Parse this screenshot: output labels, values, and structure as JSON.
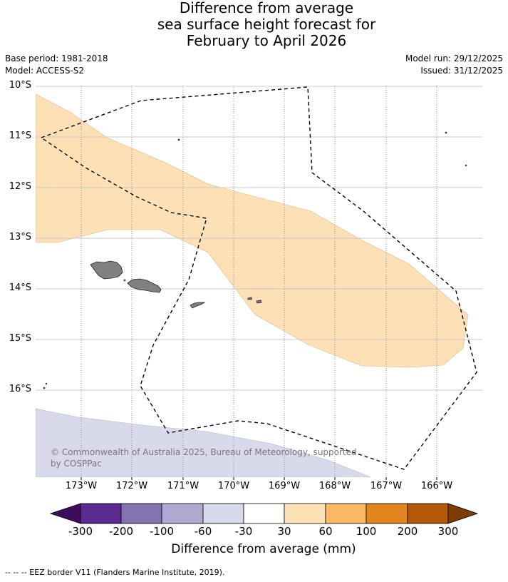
{
  "title": {
    "line1": "Difference from average",
    "line2": "sea surface height forecast for",
    "line3": "February to April 2026"
  },
  "meta": {
    "base_period": "Base period: 1981-2018",
    "model": "Model: ACCESS-S2",
    "model_run": "Model run: 29/12/2025",
    "issued": "Issued: 31/12/2025"
  },
  "map": {
    "lat_labels": [
      "10°S",
      "11°S",
      "12°S",
      "13°S",
      "14°S",
      "15°S",
      "16°S"
    ],
    "lon_labels": [
      "173°W",
      "172°W",
      "171°W",
      "170°W",
      "169°W",
      "168°W",
      "167°W",
      "166°W"
    ],
    "copyright_line1": "© Commonwealth of Australia 2025, Bureau of Meteorology, supported",
    "copyright_line2": "by COSPPac",
    "regions": [
      {
        "name": "positive-anomaly-band",
        "category": "30 to 60 mm",
        "color": "#fde0b6"
      },
      {
        "name": "negative-anomaly-south",
        "category": "-60 to -30 mm",
        "color": "#d8d9ea"
      }
    ],
    "land_color": "#808080"
  },
  "colorbar": {
    "title": "Difference from average (mm)",
    "labels": [
      "-300",
      "-200",
      "-100",
      "-60",
      "-30",
      "30",
      "60",
      "100",
      "200",
      "300"
    ],
    "colors": [
      "#3f0c5d",
      "#5b2a8f",
      "#8473b1",
      "#b0aad3",
      "#d8d9ea",
      "#ffffff",
      "#fde0b6",
      "#fbb862",
      "#e2841f",
      "#b35806",
      "#7f3b08"
    ]
  },
  "footnote": "--  --  -- EEZ border V11 (Flanders Marine Institute, 2019)."
}
